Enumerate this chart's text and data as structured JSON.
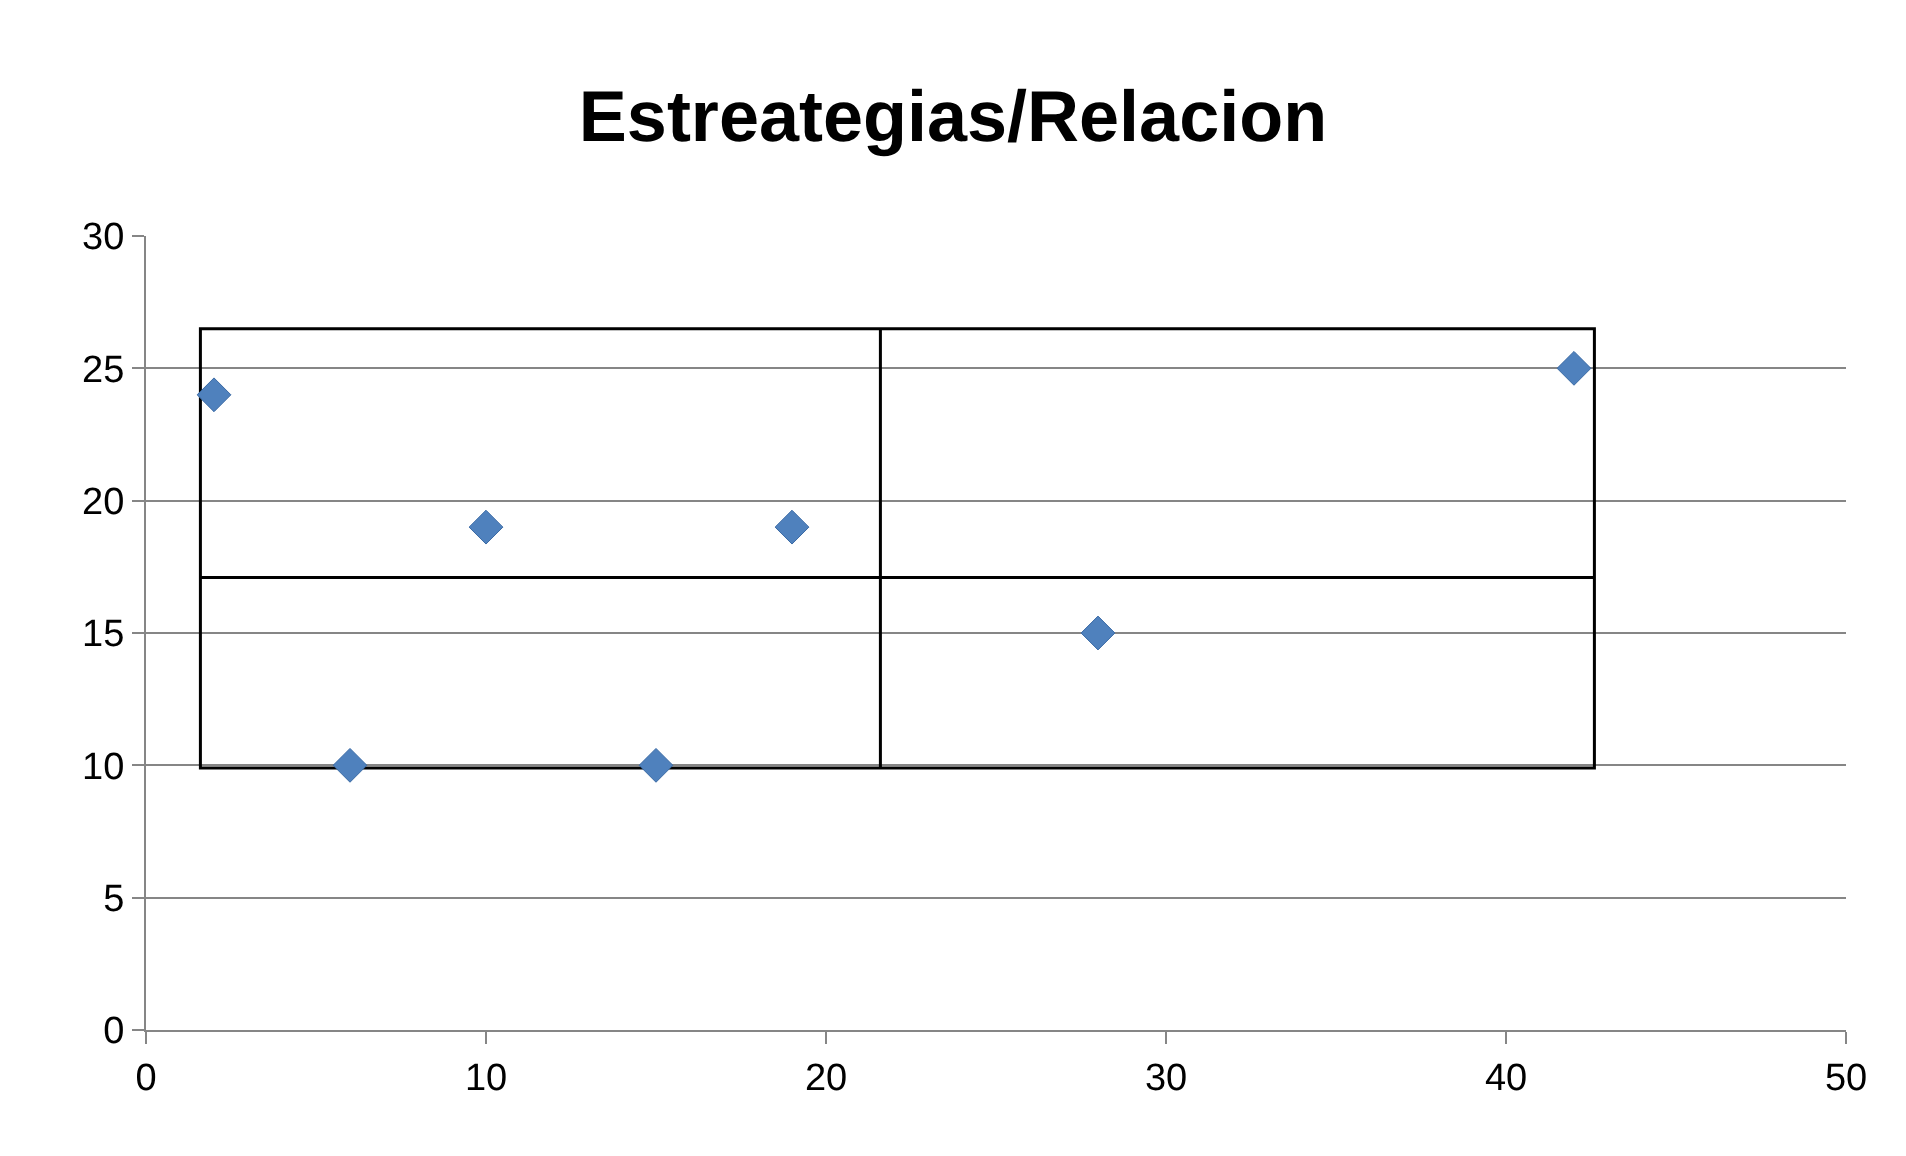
{
  "chart_data": {
    "type": "scatter",
    "title": "Estreategias/Relacion",
    "series": [
      {
        "type": "line",
        "color": "#000000",
        "x": [
          1.6,
          1.6,
          21.6,
          42.6,
          42.6,
          42.6,
          21.6,
          1.6,
          1.6,
          21.6,
          42.6,
          21.6,
          21.6,
          21.6
        ],
        "values": [
          17.1,
          26.5,
          26.5,
          26.5,
          17.1,
          9.9,
          9.9,
          9.9,
          17.1,
          17.1,
          17.1,
          17.1,
          26.5,
          9.9
        ]
      },
      {
        "color": "#4f81bd",
        "marker": "diamond",
        "x": [
          2,
          6,
          10,
          15,
          19,
          28,
          42
        ],
        "values": [
          24,
          10,
          19,
          10,
          19,
          15,
          25
        ]
      }
    ],
    "xlim": [
      0,
      50
    ],
    "xticks": [
      0,
      10,
      20,
      30,
      40,
      50
    ],
    "ylim": [
      0,
      30
    ],
    "yticks": [
      0,
      5,
      10,
      15,
      20,
      25,
      30
    ],
    "grid": "y"
  }
}
